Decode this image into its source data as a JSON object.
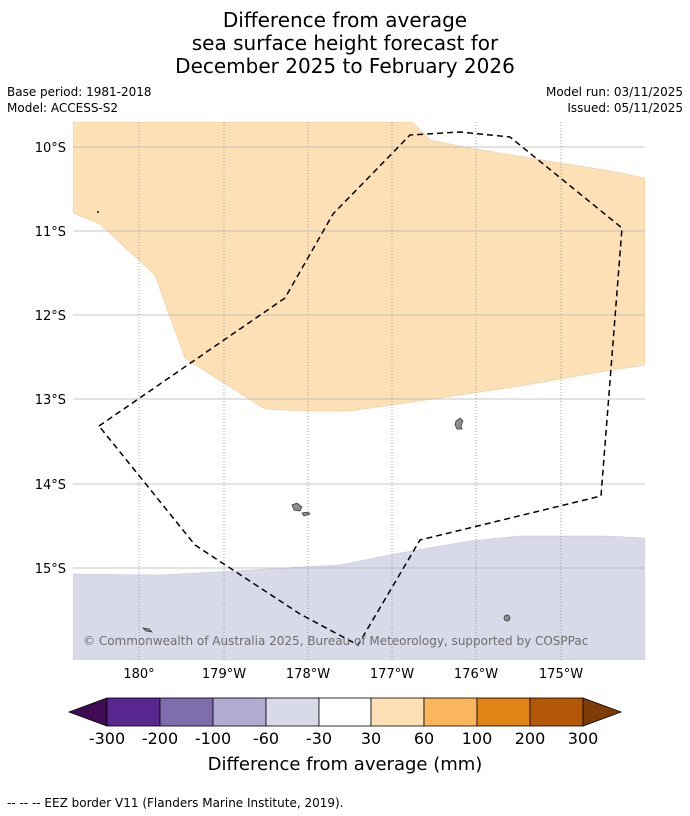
{
  "title": {
    "line1": "Difference from average",
    "line2": "sea surface height forecast for",
    "line3": "December 2025 to February 2026"
  },
  "meta": {
    "base_period": "Base period: 1981-2018",
    "model": "Model: ACCESS-S2",
    "model_run": "Model run: 03/11/2025",
    "issued": "Issued: 05/11/2025"
  },
  "map": {
    "lat_labels": [
      "10°S",
      "11°S",
      "12°S",
      "13°S",
      "14°S",
      "15°S"
    ],
    "lon_labels": [
      "180°",
      "179°W",
      "178°W",
      "177°W",
      "176°W",
      "175°W"
    ],
    "copyright": "© Commonwealth of Australia 2025, Bureau of Meteorology, supported by COSPPac",
    "colors": {
      "positive_30_60": "#fde0b6",
      "negative_60_30": "#d8d9e9",
      "land": "#8c8c8c",
      "gridline": "#b4b4b4",
      "eez_border": "#000000"
    }
  },
  "colorbar": {
    "ticks": [
      "-300",
      "-200",
      "-100",
      "-60",
      "-30",
      "30",
      "60",
      "100",
      "200",
      "300"
    ],
    "colors": [
      "#3f0b55",
      "#5a2690",
      "#7e6ead",
      "#b1aad1",
      "#d8d9e9",
      "#ffffff",
      "#fde0b6",
      "#fbb65d",
      "#e08515",
      "#b35807",
      "#7f3b08"
    ],
    "title": "Difference from average (mm)"
  },
  "footer": {
    "legend": "--  --  -- EEZ border V11 (Flanders Marine Institute, 2019)."
  }
}
